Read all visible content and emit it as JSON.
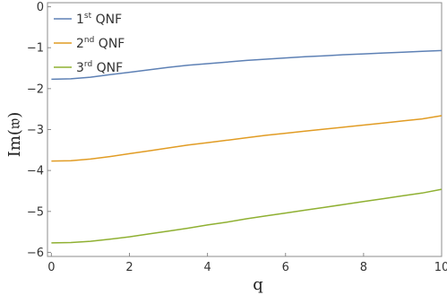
{
  "chart_data": {
    "type": "line",
    "title": "",
    "xlabel": "q",
    "ylabel": "Im(𝔴)",
    "xlim": [
      -0.1,
      10
    ],
    "ylim": [
      -6.1,
      0.1
    ],
    "x_ticks": [
      0,
      2,
      4,
      6,
      8,
      10
    ],
    "y_ticks": [
      0,
      -1,
      -2,
      -3,
      -4,
      -5,
      -6
    ],
    "grid": false,
    "legend_position": "top-left",
    "series": [
      {
        "name_base": "1",
        "name_sup": "st",
        "name_rest": " QNF",
        "color": "#5e81b5",
        "x": [
          0,
          0.5,
          1,
          1.5,
          2,
          2.5,
          3,
          3.5,
          4,
          4.5,
          5,
          5.5,
          6,
          6.5,
          7,
          7.5,
          8,
          8.5,
          9,
          9.5,
          10
        ],
        "y": [
          -1.77,
          -1.76,
          -1.72,
          -1.66,
          -1.6,
          -1.54,
          -1.48,
          -1.43,
          -1.39,
          -1.35,
          -1.31,
          -1.28,
          -1.25,
          -1.22,
          -1.2,
          -1.17,
          -1.15,
          -1.13,
          -1.11,
          -1.09,
          -1.07
        ]
      },
      {
        "name_base": "2",
        "name_sup": "nd",
        "name_rest": " QNF",
        "color": "#e19c24",
        "x": [
          0,
          0.5,
          1,
          1.5,
          2,
          2.5,
          3,
          3.5,
          4,
          4.5,
          5,
          5.5,
          6,
          6.5,
          7,
          7.5,
          8,
          8.5,
          9,
          9.5,
          10
        ],
        "y": [
          -3.77,
          -3.76,
          -3.72,
          -3.66,
          -3.59,
          -3.52,
          -3.45,
          -3.38,
          -3.32,
          -3.26,
          -3.2,
          -3.14,
          -3.09,
          -3.04,
          -2.99,
          -2.94,
          -2.89,
          -2.84,
          -2.79,
          -2.74,
          -2.66
        ]
      },
      {
        "name_base": "3",
        "name_sup": "rd",
        "name_rest": " QNF",
        "color": "#8fb032",
        "x": [
          0,
          0.5,
          1,
          1.5,
          2,
          2.5,
          3,
          3.5,
          4,
          4.5,
          5,
          5.5,
          6,
          6.5,
          7,
          7.5,
          8,
          8.5,
          9,
          9.5,
          10
        ],
        "y": [
          -5.77,
          -5.76,
          -5.73,
          -5.68,
          -5.62,
          -5.55,
          -5.48,
          -5.41,
          -5.33,
          -5.26,
          -5.18,
          -5.11,
          -5.04,
          -4.97,
          -4.9,
          -4.83,
          -4.76,
          -4.69,
          -4.62,
          -4.55,
          -4.46
        ]
      }
    ]
  }
}
